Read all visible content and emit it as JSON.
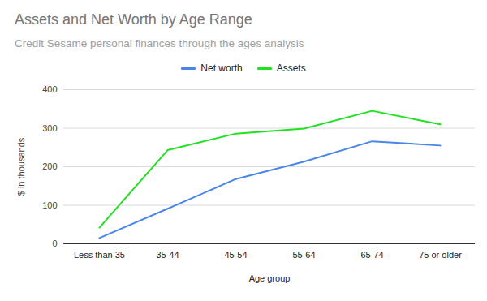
{
  "chart_data": {
    "type": "line",
    "title": "Assets and Net Worth by Age Range",
    "subtitle": "Credit Sesame personal finances through the ages analysis",
    "x_label": "Age group",
    "y_label": "$ in thousands",
    "categories": [
      "Less than 35",
      "35-44",
      "45-54",
      "55-64",
      "65-74",
      "75 or older"
    ],
    "series": [
      {
        "name": "Net worth",
        "color": "#4a86e8",
        "values": [
          15,
          91,
          168,
          213,
          266,
          255
        ]
      },
      {
        "name": "Assets",
        "color": "#22e022",
        "values": [
          42,
          243,
          286,
          299,
          345,
          310
        ]
      }
    ],
    "ylim": [
      0,
      400
    ],
    "yticks": [
      0,
      100,
      200,
      300,
      400
    ],
    "grid": true,
    "legend": "top"
  }
}
